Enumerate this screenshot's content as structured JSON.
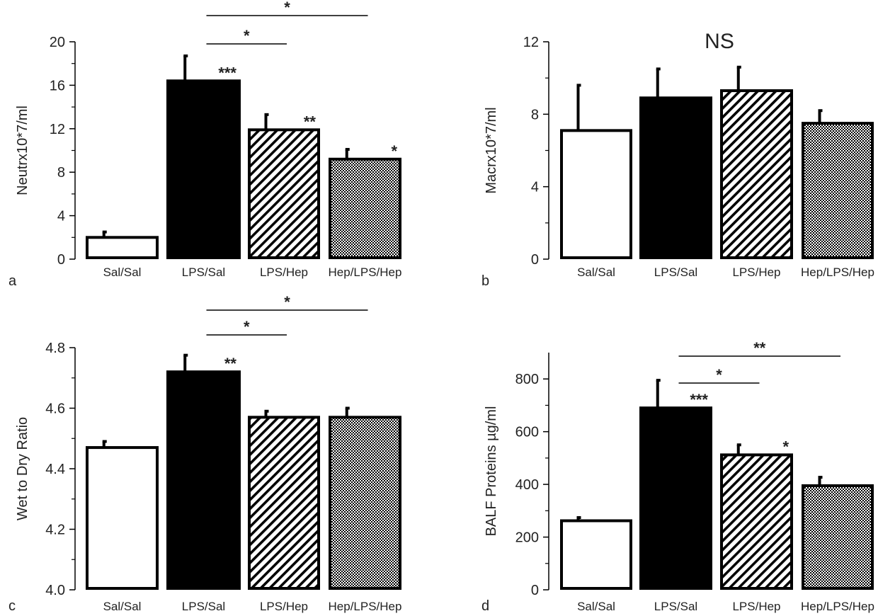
{
  "patterns": {
    "Sal/Sal": "white",
    "LPS/Sal": "black",
    "LPS/Hep": "hatch",
    "Hep/LPS/Hep": "checker"
  },
  "colors": {
    "ink": "#000000",
    "background": "#ffffff"
  },
  "chart_data": [
    {
      "type": "bar",
      "panel_label": "a",
      "title": "",
      "ylabel": "Neutrx10*7/ml",
      "xlabel": "",
      "categories": [
        "Sal/Sal",
        "LPS/Sal",
        "LPS/Hep",
        "Hep/LPS/Hep"
      ],
      "values": [
        2.0,
        16.4,
        11.9,
        9.2
      ],
      "errors": [
        0.5,
        2.3,
        1.4,
        0.9
      ],
      "ylim": [
        0,
        20
      ],
      "yticks": [
        "0",
        "4",
        "8",
        "12",
        "16",
        "20"
      ],
      "bar_annotations": [
        "",
        "***",
        "**",
        "*"
      ],
      "brackets": [
        {
          "from": 1,
          "to": 3,
          "label": "*"
        },
        {
          "from": 1,
          "to": 2,
          "label": "*"
        }
      ]
    },
    {
      "type": "bar",
      "panel_label": "b",
      "title": "NS",
      "ylabel": "Macrx10*7/ml",
      "xlabel": "",
      "categories": [
        "Sal/Sal",
        "LPS/Sal",
        "LPS/Hep",
        "Hep/LPS/Hep"
      ],
      "values": [
        7.1,
        8.9,
        9.3,
        7.5
      ],
      "errors": [
        2.5,
        1.6,
        1.3,
        0.7
      ],
      "ylim": [
        0,
        12
      ],
      "yticks": [
        "0",
        "4",
        "8",
        "12"
      ],
      "bar_annotations": [
        "",
        "",
        "",
        ""
      ],
      "brackets": []
    },
    {
      "type": "bar",
      "panel_label": "c",
      "title": "",
      "ylabel": "Wet to Dry Ratio",
      "xlabel": "",
      "categories": [
        "Sal/Sal",
        "LPS/Sal",
        "LPS/Hep",
        "Hep/LPS/Hep"
      ],
      "values": [
        4.47,
        4.72,
        4.57,
        4.57
      ],
      "errors": [
        0.02,
        0.055,
        0.02,
        0.03
      ],
      "ylim": [
        4.0,
        4.8
      ],
      "yticks": [
        "4.0",
        "4.2",
        "4.4",
        "4.6",
        "4.8"
      ],
      "bar_annotations": [
        "",
        "**",
        "",
        ""
      ],
      "brackets": [
        {
          "from": 1,
          "to": 3,
          "label": "*"
        },
        {
          "from": 1,
          "to": 2,
          "label": "*"
        }
      ]
    },
    {
      "type": "bar",
      "panel_label": "d",
      "title": "",
      "ylabel": "BALF Proteins µg/ml",
      "xlabel": "",
      "categories": [
        "Sal/Sal",
        "LPS/Sal",
        "LPS/Hep",
        "Hep/LPS/Hep"
      ],
      "values": [
        262,
        690,
        512,
        395
      ],
      "errors": [
        12,
        105,
        38,
        32
      ],
      "ylim": [
        0,
        900
      ],
      "yticks": [
        "0",
        "200",
        "400",
        "600",
        "800"
      ],
      "bar_annotations": [
        "",
        "***",
        "*",
        ""
      ],
      "brackets": [
        {
          "from": 1,
          "to": 3,
          "label": "**"
        },
        {
          "from": 1,
          "to": 2,
          "label": "*"
        }
      ]
    }
  ]
}
